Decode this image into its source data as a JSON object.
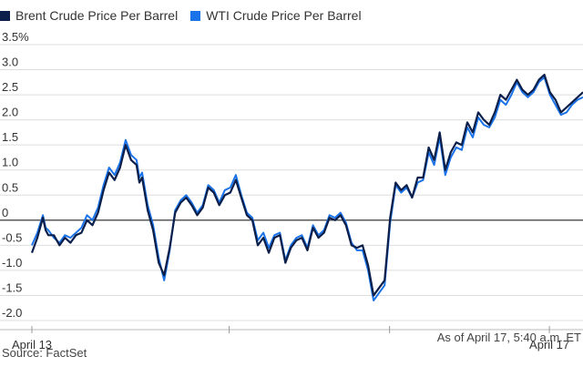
{
  "chart_data": {
    "type": "line",
    "title": "",
    "xlabel": "",
    "ylabel": "",
    "ylim": [
      -2.0,
      3.5
    ],
    "yticks": [
      {
        "value": 3.5,
        "label": "3.5%"
      },
      {
        "value": 3.0,
        "label": "3.0"
      },
      {
        "value": 2.5,
        "label": "2.5"
      },
      {
        "value": 2.0,
        "label": "2.0"
      },
      {
        "value": 1.5,
        "label": "1.5"
      },
      {
        "value": 1.0,
        "label": "1.0"
      },
      {
        "value": 0.5,
        "label": "0.5"
      },
      {
        "value": 0,
        "label": "0"
      },
      {
        "value": -0.5,
        "label": "-0.5"
      },
      {
        "value": -1.0,
        "label": "-1.0"
      },
      {
        "value": -1.5,
        "label": "-1.5"
      },
      {
        "value": -2.0,
        "label": "-2.0"
      }
    ],
    "xlim": [
      0,
      100
    ],
    "xticks": [
      {
        "value": 0,
        "label": "April 13"
      },
      {
        "value": 35.8,
        "label": ""
      },
      {
        "value": 64.9,
        "label": ""
      },
      {
        "value": 93.9,
        "label": "April 17"
      }
    ],
    "series": [
      {
        "name": "Brent Crude Price Per Barrel",
        "color": "#0b1f4a",
        "x": [
          0,
          1,
          2,
          2.5,
          3,
          4,
          5,
          6,
          7,
          8,
          9,
          10,
          11,
          12,
          13,
          14,
          15,
          16,
          17,
          18,
          19,
          19.5,
          20,
          21,
          22,
          23,
          24,
          25,
          26,
          27,
          28,
          29,
          30,
          31,
          32,
          33,
          34,
          35,
          36,
          37,
          38,
          39,
          40,
          41,
          42,
          43,
          44,
          45,
          46,
          47,
          48,
          49,
          50,
          51,
          52,
          53,
          54,
          55,
          56,
          57,
          58,
          59,
          60,
          61,
          62,
          63,
          64,
          65,
          66,
          67,
          68,
          69,
          70,
          71,
          72,
          73,
          74,
          75,
          76,
          77,
          78,
          79,
          80,
          81,
          82,
          83,
          84,
          85,
          86,
          87,
          88,
          89,
          90,
          91,
          92,
          93,
          94,
          95,
          96,
          97,
          98,
          99,
          100
        ],
        "values": [
          -0.65,
          -0.35,
          0.05,
          -0.2,
          -0.3,
          -0.3,
          -0.5,
          -0.35,
          -0.45,
          -0.3,
          -0.25,
          0.0,
          -0.1,
          0.15,
          0.6,
          0.95,
          0.8,
          1.05,
          1.5,
          1.2,
          1.1,
          0.75,
          0.85,
          0.2,
          -0.2,
          -0.85,
          -1.1,
          -0.55,
          0.15,
          0.35,
          0.45,
          0.3,
          0.1,
          0.25,
          0.65,
          0.55,
          0.3,
          0.5,
          0.55,
          0.8,
          0.45,
          0.1,
          0.0,
          -0.5,
          -0.35,
          -0.65,
          -0.35,
          -0.3,
          -0.85,
          -0.55,
          -0.4,
          -0.35,
          -0.6,
          -0.15,
          -0.35,
          -0.25,
          0.05,
          0.0,
          0.1,
          -0.1,
          -0.5,
          -0.55,
          -0.5,
          -0.9,
          -1.5,
          -1.35,
          -1.2,
          0.05,
          0.75,
          0.6,
          0.7,
          0.45,
          0.85,
          0.85,
          1.45,
          1.2,
          1.75,
          1.0,
          1.35,
          1.55,
          1.5,
          1.95,
          1.75,
          2.15,
          2.0,
          1.9,
          2.15,
          2.5,
          2.4,
          2.6,
          2.8,
          2.6,
          2.5,
          2.6,
          2.8,
          2.9,
          2.55,
          2.4,
          2.15,
          2.25,
          2.35,
          2.45,
          2.55
        ]
      },
      {
        "name": "WTI Crude Price Per Barrel",
        "color": "#1a73e8",
        "x": [
          0,
          1,
          2,
          2.5,
          3,
          4,
          5,
          6,
          7,
          8,
          9,
          10,
          11,
          12,
          13,
          14,
          15,
          16,
          17,
          18,
          19,
          19.5,
          20,
          21,
          22,
          23,
          24,
          25,
          26,
          27,
          28,
          29,
          30,
          31,
          32,
          33,
          34,
          35,
          36,
          37,
          38,
          39,
          40,
          41,
          42,
          43,
          44,
          45,
          46,
          47,
          48,
          49,
          50,
          51,
          52,
          53,
          54,
          55,
          56,
          57,
          58,
          59,
          60,
          61,
          62,
          63,
          64,
          65,
          66,
          67,
          68,
          69,
          70,
          71,
          72,
          73,
          74,
          75,
          76,
          77,
          78,
          79,
          80,
          81,
          82,
          83,
          84,
          85,
          86,
          87,
          88,
          89,
          90,
          91,
          92,
          93,
          94,
          95,
          96,
          97,
          98,
          99,
          100
        ],
        "values": [
          -0.5,
          -0.25,
          0.1,
          -0.15,
          -0.2,
          -0.35,
          -0.45,
          -0.3,
          -0.35,
          -0.25,
          -0.15,
          0.1,
          0.0,
          0.25,
          0.7,
          1.05,
          0.9,
          1.15,
          1.6,
          1.3,
          1.2,
          0.85,
          0.95,
          0.3,
          -0.1,
          -0.75,
          -1.2,
          -0.6,
          0.2,
          0.4,
          0.5,
          0.35,
          0.15,
          0.3,
          0.7,
          0.6,
          0.35,
          0.6,
          0.65,
          0.9,
          0.5,
          0.15,
          0.05,
          -0.4,
          -0.25,
          -0.55,
          -0.3,
          -0.25,
          -0.8,
          -0.5,
          -0.35,
          -0.3,
          -0.55,
          -0.1,
          -0.3,
          -0.2,
          0.1,
          0.05,
          0.15,
          -0.05,
          -0.45,
          -0.6,
          -0.6,
          -1.0,
          -1.6,
          -1.45,
          -1.3,
          -0.05,
          0.7,
          0.55,
          0.65,
          0.45,
          0.75,
          0.8,
          1.35,
          1.1,
          1.65,
          0.9,
          1.25,
          1.45,
          1.4,
          1.85,
          1.65,
          2.05,
          1.9,
          1.85,
          2.05,
          2.4,
          2.3,
          2.5,
          2.75,
          2.55,
          2.45,
          2.55,
          2.75,
          2.85,
          2.5,
          2.3,
          2.1,
          2.15,
          2.3,
          2.4,
          2.45
        ]
      }
    ]
  },
  "footnote": "As of April 17, 5:40 a.m. ET",
  "source": "Source: FactSet"
}
